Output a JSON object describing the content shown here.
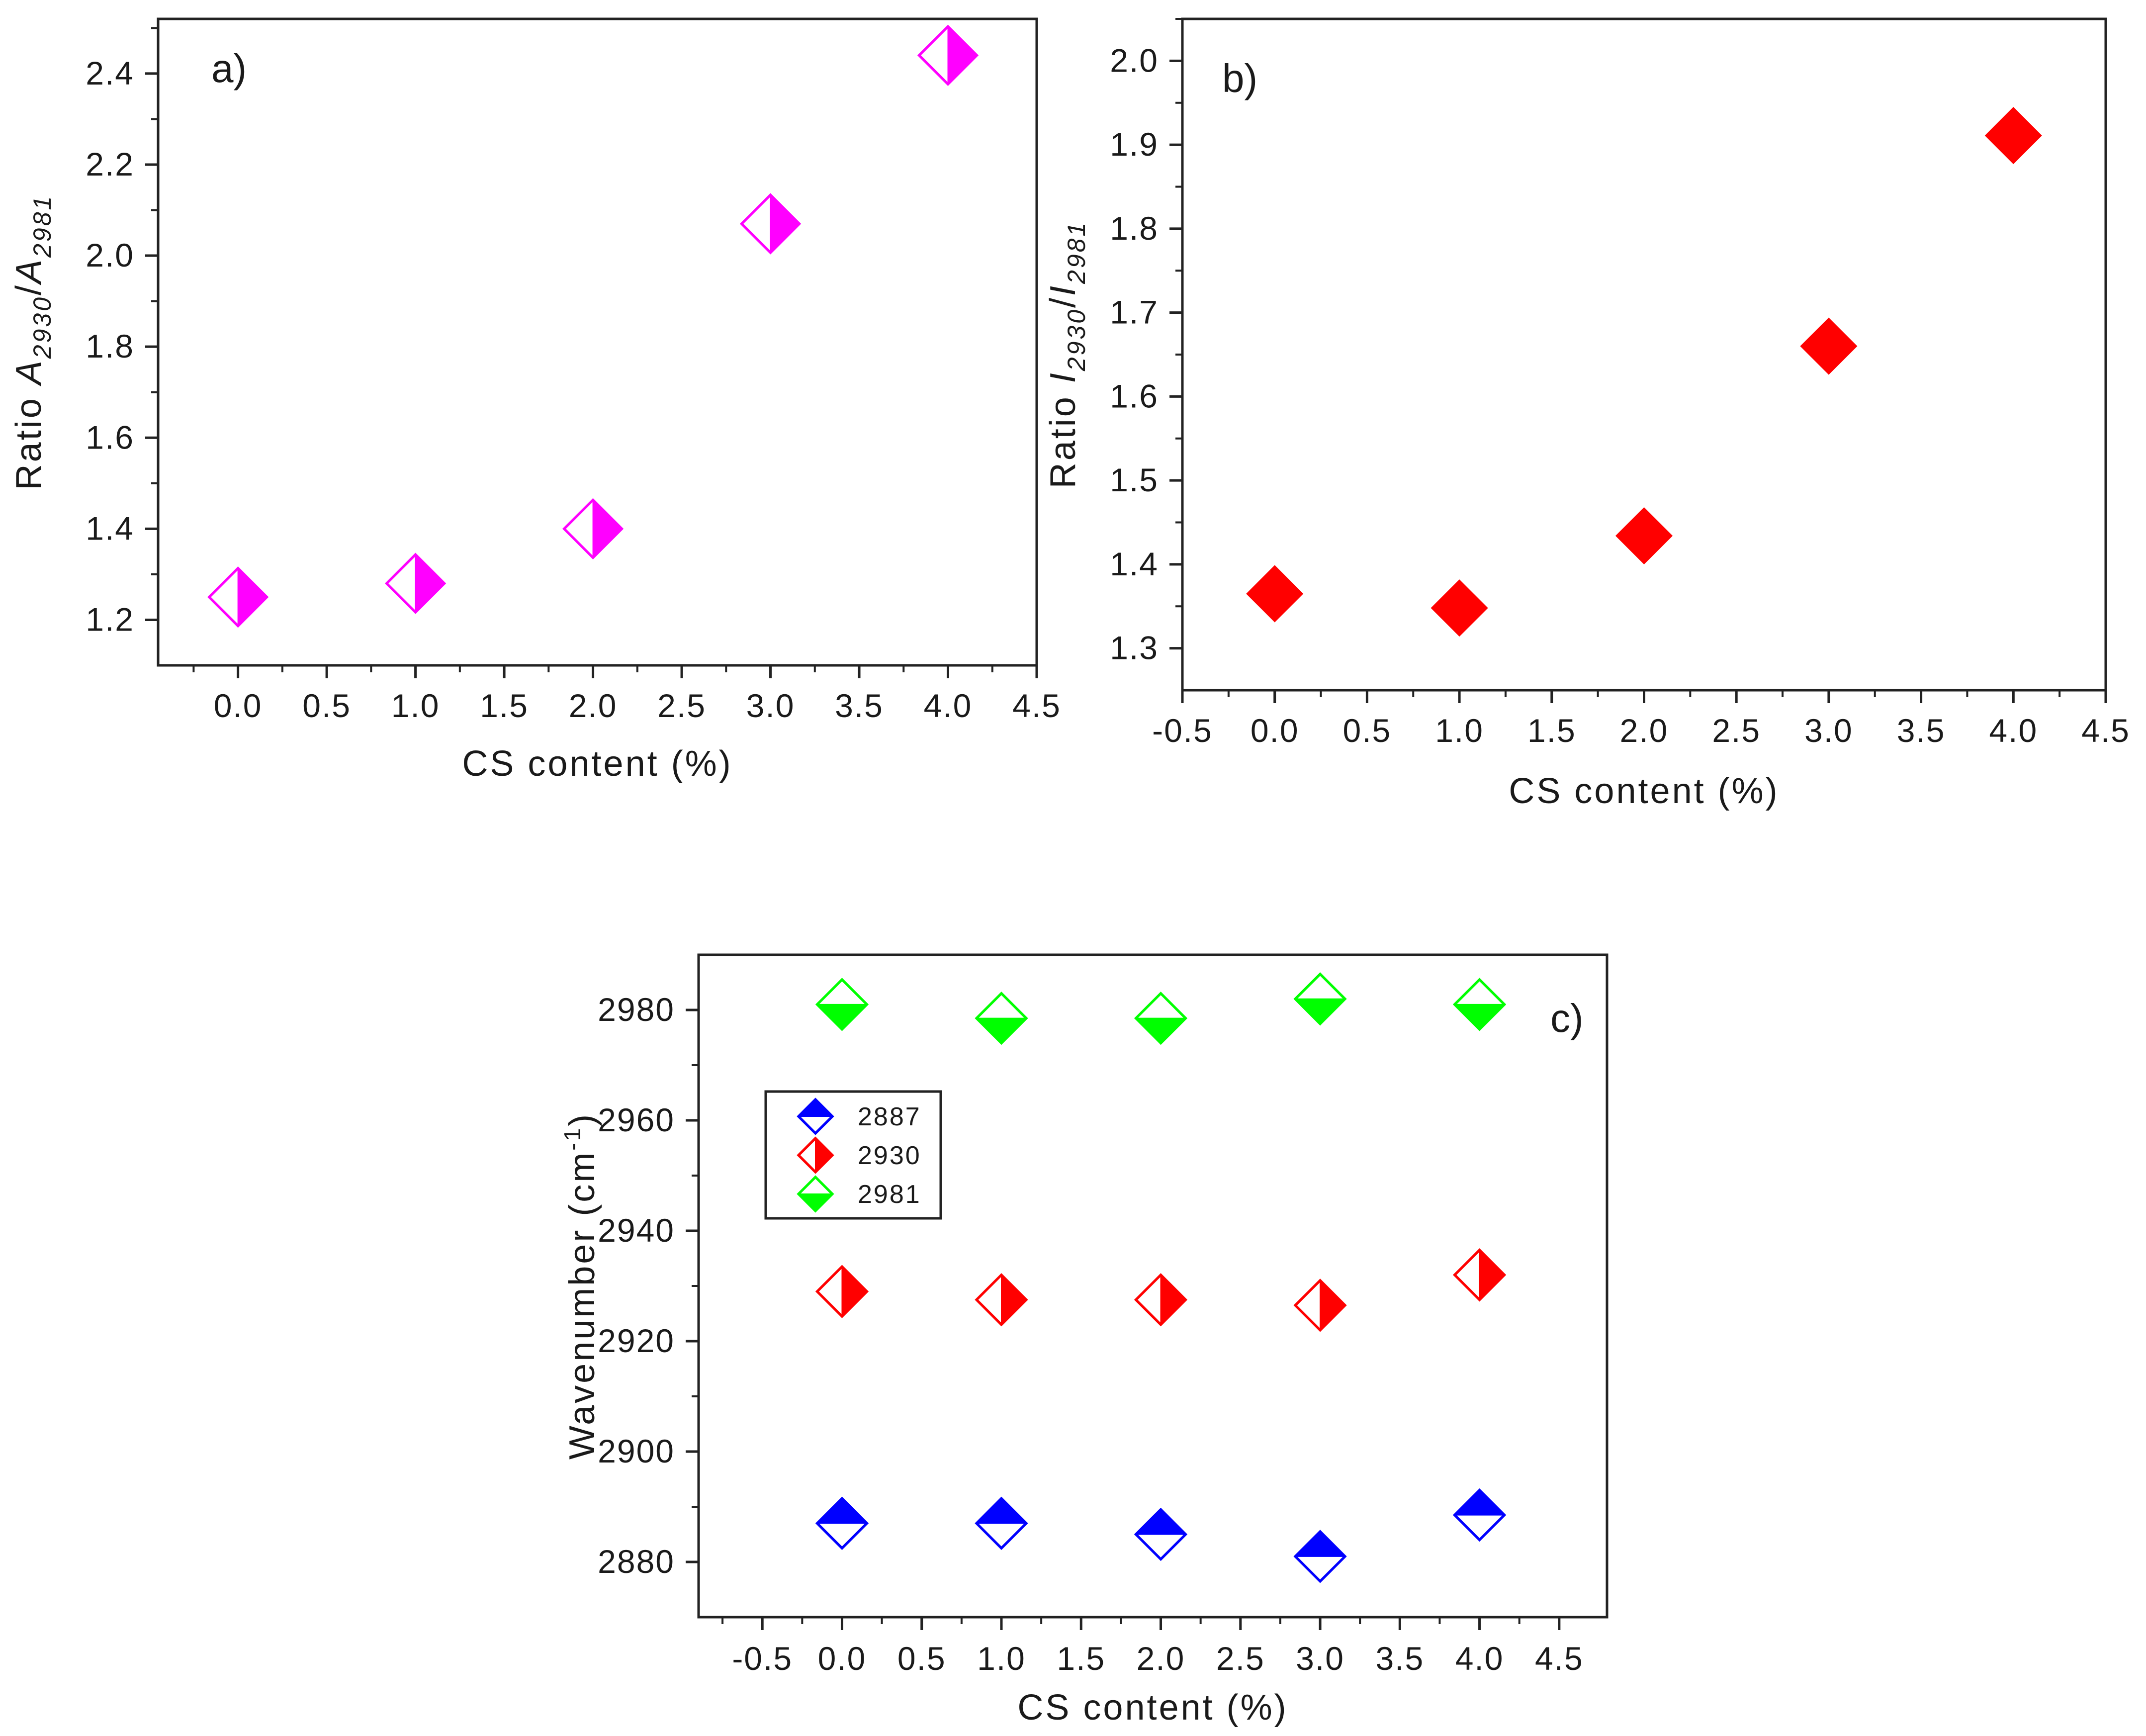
{
  "chart_data": [
    {
      "id": "a",
      "type": "scatter",
      "panel_label": "a)",
      "xlabel": "CS content (%)",
      "ylabel": {
        "prefix": "Ratio ",
        "n1": "A",
        "s1": "2930",
        "n2": "A",
        "s2": "2981"
      },
      "xlim": [
        -0.45,
        4.5
      ],
      "ylim": [
        1.1,
        2.52
      ],
      "xticks": [
        0.0,
        0.5,
        1.0,
        1.5,
        2.0,
        2.5,
        3.0,
        3.5,
        4.0,
        4.5
      ],
      "xtick_labels": [
        "0.0",
        "0.5",
        "1.0",
        "1.5",
        "2.0",
        "2.5",
        "3.0",
        "3.5",
        "4.0",
        "4.5"
      ],
      "yticks": [
        1.2,
        1.4,
        1.6,
        1.8,
        2.0,
        2.2,
        2.4
      ],
      "ytick_labels": [
        "1.2",
        "1.4",
        "1.6",
        "1.8",
        "2.0",
        "2.2",
        "2.4"
      ],
      "series": [
        {
          "name": "A2930/A2981",
          "color": "#ff00ff",
          "marker": "diamond-half-right",
          "x": [
            0,
            1,
            2,
            3,
            4
          ],
          "y": [
            1.25,
            1.28,
            1.4,
            2.07,
            2.44
          ]
        }
      ]
    },
    {
      "id": "b",
      "type": "scatter",
      "panel_label": "b)",
      "xlabel": "CS content (%)",
      "ylabel": {
        "prefix": "Ratio ",
        "n1": "I",
        "s1": "2930",
        "n2": "I",
        "s2": "2981"
      },
      "xlim": [
        -0.5,
        4.5
      ],
      "ylim": [
        1.25,
        2.05
      ],
      "xticks": [
        -0.5,
        0.0,
        0.5,
        1.0,
        1.5,
        2.0,
        2.5,
        3.0,
        3.5,
        4.0,
        4.5
      ],
      "xtick_labels": [
        "-0.5",
        "0.0",
        "0.5",
        "1.0",
        "1.5",
        "2.0",
        "2.5",
        "3.0",
        "3.5",
        "4.0",
        "4.5"
      ],
      "yticks": [
        1.3,
        1.4,
        1.5,
        1.6,
        1.7,
        1.8,
        1.9,
        2.0
      ],
      "ytick_labels": [
        "1.3",
        "1.4",
        "1.5",
        "1.6",
        "1.7",
        "1.8",
        "1.9",
        "2.0"
      ],
      "series": [
        {
          "name": "I2930/I2981",
          "color": "#ff0000",
          "marker": "diamond-filled",
          "x": [
            0,
            1,
            2,
            3,
            4
          ],
          "y": [
            1.365,
            1.348,
            1.434,
            1.66,
            1.911
          ]
        }
      ]
    },
    {
      "id": "c",
      "type": "scatter",
      "panel_label": "c)",
      "xlabel": "CS content (%)",
      "ylabel": {
        "prefix": "Wavenumber (cm",
        "sup": "-1",
        "suffix": ")"
      },
      "xlim": [
        -0.9,
        4.8
      ],
      "ylim": [
        2870,
        2990
      ],
      "xticks": [
        -0.5,
        0.0,
        0.5,
        1.0,
        1.5,
        2.0,
        2.5,
        3.0,
        3.5,
        4.0,
        4.5
      ],
      "xtick_labels": [
        "-0.5",
        "0.0",
        "0.5",
        "1.0",
        "1.5",
        "2.0",
        "2.5",
        "3.0",
        "3.5",
        "4.0",
        "4.5"
      ],
      "yticks": [
        2880,
        2900,
        2920,
        2940,
        2960,
        2980
      ],
      "ytick_labels": [
        "2880",
        "2900",
        "2920",
        "2940",
        "2960",
        "2980"
      ],
      "legend": {
        "position": "upper-left",
        "entries": [
          "2887",
          "2930",
          "2981"
        ]
      },
      "series": [
        {
          "name": "2887",
          "color": "#0000ff",
          "marker": "diamond-half-top",
          "x": [
            0,
            1,
            2,
            3,
            4
          ],
          "y": [
            2887.0,
            2887.0,
            2885.0,
            2881.0,
            2888.5
          ]
        },
        {
          "name": "2930",
          "color": "#ff0000",
          "marker": "diamond-half-right",
          "x": [
            0,
            1,
            2,
            3,
            4
          ],
          "y": [
            2929.0,
            2927.5,
            2927.5,
            2926.5,
            2932.0
          ]
        },
        {
          "name": "2981",
          "color": "#00ff00",
          "marker": "diamond-half-bottom",
          "x": [
            0,
            1,
            2,
            3,
            4
          ],
          "y": [
            2981.0,
            2978.5,
            2978.5,
            2982.0,
            2981.0
          ]
        }
      ]
    }
  ]
}
